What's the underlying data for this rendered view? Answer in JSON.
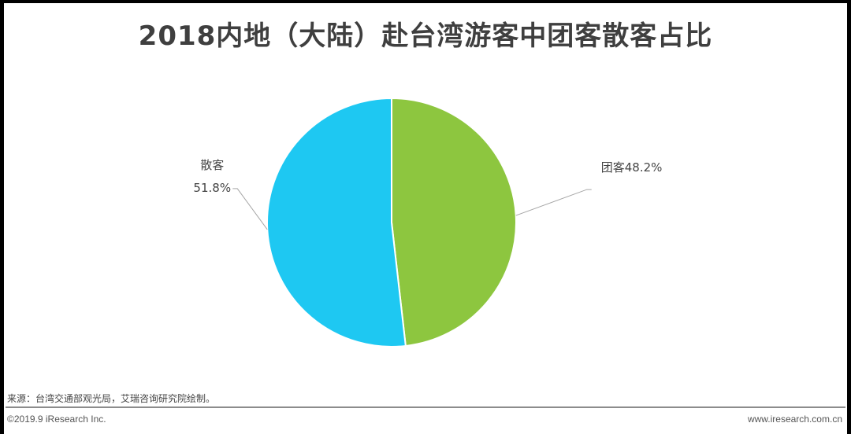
{
  "source_note": "来源：台湾交通部观光局，艾瑞咨询研究院绘制。",
  "footer": {
    "copyright": "©2019.9 iResearch Inc.",
    "website": "www.iresearch.com.cn"
  },
  "colors": {
    "group": "#8dc63f",
    "individual": "#1ec8f2"
  },
  "chart_data": {
    "type": "pie",
    "title": "2018内地（大陆）赴台湾游客中团客散客占比",
    "slices": [
      {
        "label": "团客",
        "value_label": "48.2%",
        "value": 48.2
      },
      {
        "label": "散客",
        "value_label": "51.8%",
        "value": 51.8
      }
    ]
  }
}
